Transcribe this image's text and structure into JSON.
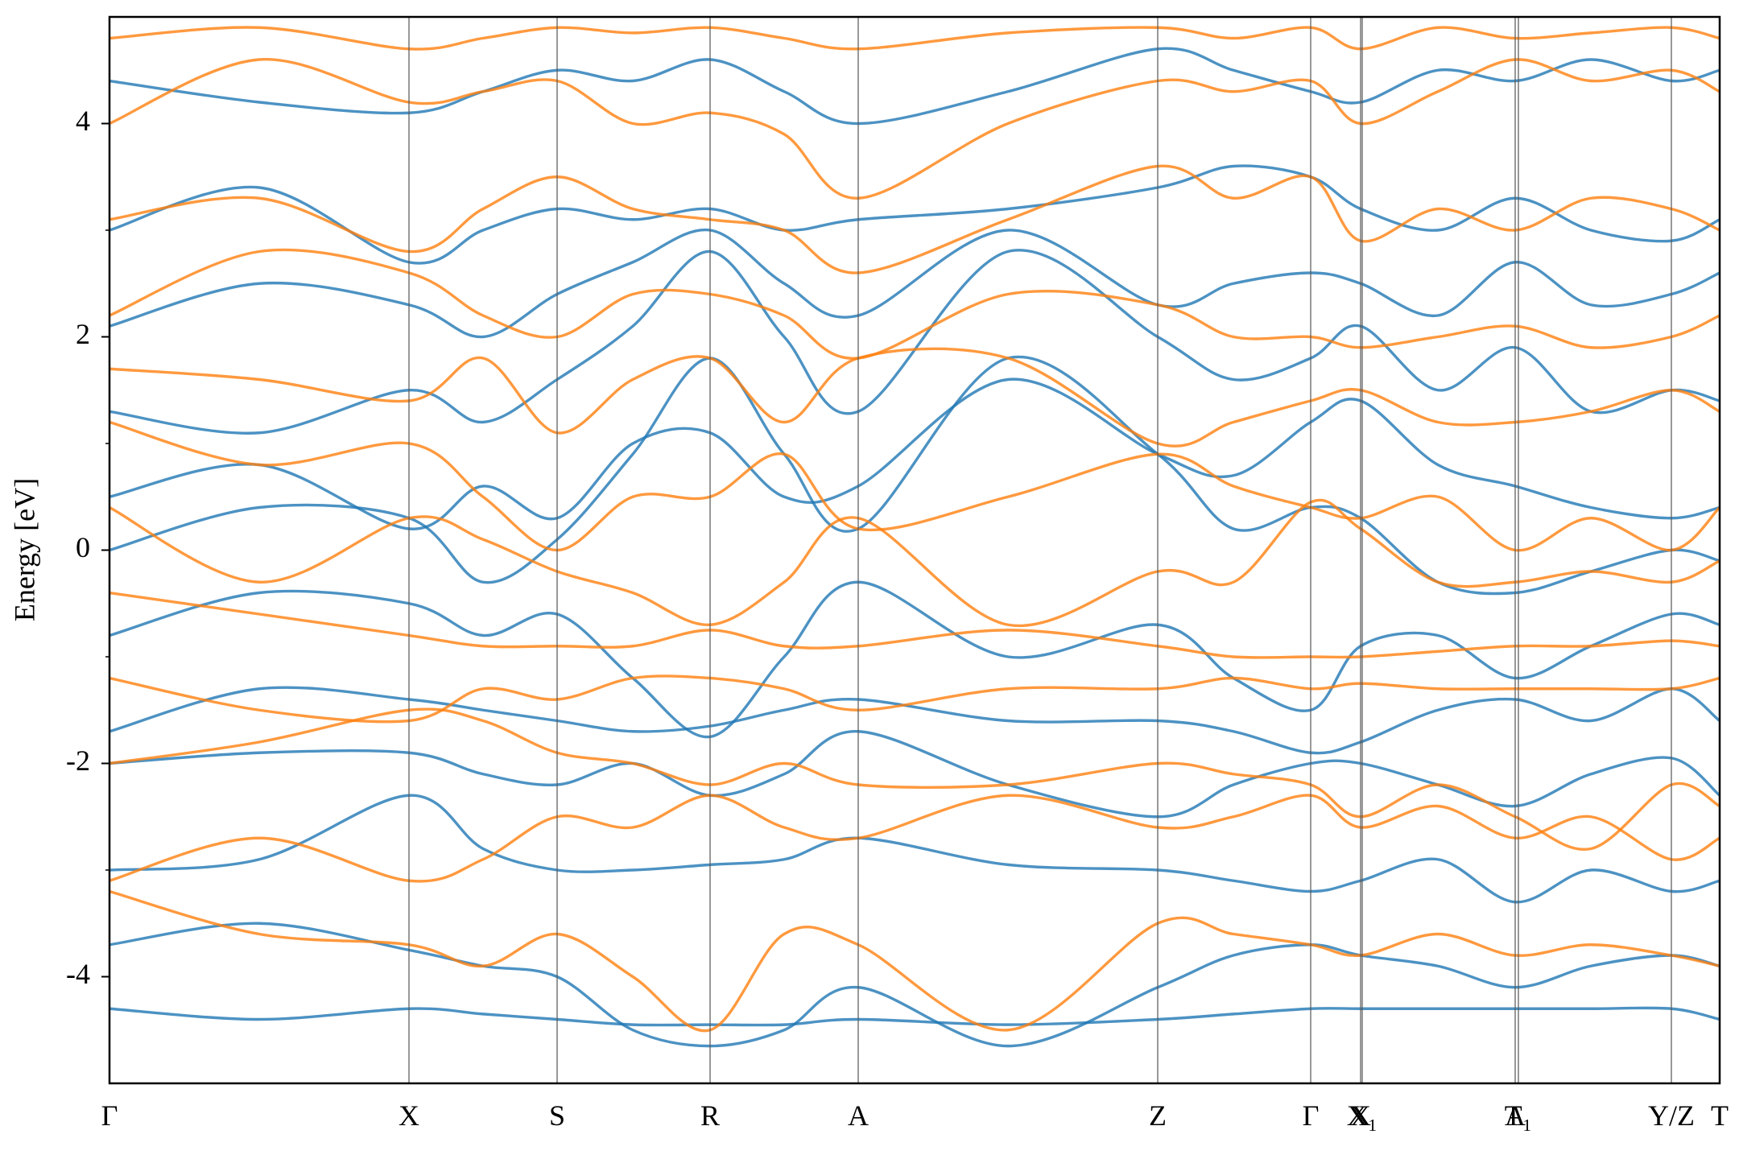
{
  "chart_data": {
    "type": "band_structure",
    "ylabel": "Energy [eV]",
    "xlim": [
      0,
      1
    ],
    "ylim": [
      -5,
      5
    ],
    "yticks": [
      -4,
      -2,
      0,
      2,
      4
    ],
    "yminor_ticks": [
      -3,
      -1,
      1,
      3
    ],
    "xticks": [
      {
        "value": 0,
        "label": "Γ"
      },
      {
        "value": 0.186,
        "label": "X"
      },
      {
        "value": 0.278,
        "label": "S"
      },
      {
        "value": 0.373,
        "label": "R"
      },
      {
        "value": 0.465,
        "label": "A"
      },
      {
        "value": 0.651,
        "label": "Z"
      },
      {
        "value": 0.746,
        "label": "Γ"
      },
      {
        "value": 0.777,
        "label": "X"
      },
      {
        "value": 0.778,
        "label": "X₁"
      },
      {
        "value": 0.873,
        "label": "A"
      },
      {
        "value": 0.875,
        "label": "T₁"
      },
      {
        "value": 0.97,
        "label": "Y/Z"
      },
      {
        "value": 1,
        "label": "T"
      }
    ],
    "x": [
      0,
      0.093,
      0.186,
      0.232,
      0.278,
      0.325,
      0.373,
      0.419,
      0.465,
      0.558,
      0.651,
      0.698,
      0.746,
      0.777,
      0.825,
      0.873,
      0.92,
      0.97,
      1
    ],
    "series": [
      {
        "color": "#1f77b4",
        "bands": [
          [
            -4.3,
            -4.4,
            -4.3,
            -4.35,
            -4.4,
            -4.45,
            -4.45,
            -4.45,
            -4.4,
            -4.45,
            -4.4,
            -4.35,
            -4.3,
            -4.3,
            -4.3,
            -4.3,
            -4.3,
            -4.3,
            -4.4
          ],
          [
            -3.7,
            -3.5,
            -3.75,
            -3.9,
            -4.0,
            -4.5,
            -4.65,
            -4.5,
            -4.1,
            -4.65,
            -4.1,
            -3.8,
            -3.7,
            -3.8,
            -3.9,
            -4.1,
            -3.9,
            -3.8,
            -3.9
          ],
          [
            -3.0,
            -2.9,
            -2.3,
            -2.8,
            -3.0,
            -3.0,
            -2.95,
            -2.9,
            -2.7,
            -2.95,
            -3.0,
            -3.1,
            -3.2,
            -3.1,
            -2.9,
            -3.3,
            -3.0,
            -3.2,
            -3.1
          ],
          [
            -2.0,
            -1.9,
            -1.9,
            -2.1,
            -2.2,
            -2.0,
            -2.3,
            -2.1,
            -1.7,
            -2.2,
            -2.5,
            -2.2,
            -2.0,
            -2.0,
            -2.2,
            -2.4,
            -2.1,
            -1.95,
            -2.3
          ],
          [
            -1.7,
            -1.3,
            -1.4,
            -1.5,
            -1.6,
            -1.7,
            -1.65,
            -1.5,
            -1.4,
            -1.6,
            -1.6,
            -1.7,
            -1.9,
            -1.8,
            -1.5,
            -1.4,
            -1.6,
            -1.3,
            -1.6
          ],
          [
            -0.8,
            -0.4,
            -0.5,
            -0.8,
            -0.6,
            -1.2,
            -1.75,
            -1.0,
            -0.3,
            -1.0,
            -0.7,
            -1.2,
            -1.5,
            -0.9,
            -0.8,
            -1.2,
            -0.9,
            -0.6,
            -0.7
          ],
          [
            0.0,
            0.4,
            0.3,
            -0.3,
            0.1,
            0.9,
            1.8,
            0.9,
            0.2,
            1.8,
            0.9,
            0.2,
            0.4,
            0.3,
            -0.3,
            -0.4,
            -0.2,
            0.0,
            -0.1
          ],
          [
            0.5,
            0.8,
            0.2,
            0.6,
            0.3,
            1.0,
            1.1,
            0.5,
            0.6,
            1.6,
            0.9,
            0.7,
            1.2,
            1.4,
            0.8,
            0.6,
            0.4,
            0.3,
            0.4
          ],
          [
            1.3,
            1.1,
            1.5,
            1.2,
            1.6,
            2.1,
            2.8,
            2.0,
            1.3,
            2.8,
            2.0,
            1.6,
            1.8,
            2.1,
            1.5,
            1.9,
            1.3,
            1.5,
            1.4
          ],
          [
            2.1,
            2.5,
            2.3,
            2.0,
            2.4,
            2.7,
            3.0,
            2.5,
            2.2,
            3.0,
            2.3,
            2.5,
            2.6,
            2.5,
            2.2,
            2.7,
            2.3,
            2.4,
            2.6
          ],
          [
            3.0,
            3.4,
            2.7,
            3.0,
            3.2,
            3.1,
            3.2,
            3.0,
            3.1,
            3.2,
            3.4,
            3.6,
            3.5,
            3.2,
            3.0,
            3.3,
            3.0,
            2.9,
            3.1
          ],
          [
            4.4,
            4.2,
            4.1,
            4.3,
            4.5,
            4.4,
            4.6,
            4.3,
            4.0,
            4.3,
            4.7,
            4.5,
            4.3,
            4.2,
            4.5,
            4.4,
            4.6,
            4.4,
            4.5
          ]
        ]
      },
      {
        "color": "#ff7f0e",
        "bands": [
          [
            -3.2,
            -3.6,
            -3.7,
            -3.9,
            -3.6,
            -4.0,
            -4.5,
            -3.6,
            -3.7,
            -4.5,
            -3.5,
            -3.6,
            -3.7,
            -3.8,
            -3.6,
            -3.8,
            -3.7,
            -3.8,
            -3.9
          ],
          [
            -3.1,
            -2.7,
            -3.1,
            -2.9,
            -2.5,
            -2.6,
            -2.3,
            -2.6,
            -2.7,
            -2.3,
            -2.6,
            -2.5,
            -2.3,
            -2.6,
            -2.4,
            -2.7,
            -2.5,
            -2.9,
            -2.7
          ],
          [
            -2.0,
            -1.8,
            -1.5,
            -1.6,
            -1.9,
            -2.0,
            -2.2,
            -2.0,
            -2.2,
            -2.2,
            -2.0,
            -2.1,
            -2.2,
            -2.5,
            -2.2,
            -2.5,
            -2.8,
            -2.2,
            -2.4
          ],
          [
            -1.2,
            -1.5,
            -1.6,
            -1.3,
            -1.4,
            -1.2,
            -1.2,
            -1.3,
            -1.5,
            -1.3,
            -1.3,
            -1.2,
            -1.3,
            -1.25,
            -1.3,
            -1.3,
            -1.3,
            -1.3,
            -1.2
          ],
          [
            -0.4,
            -0.6,
            -0.8,
            -0.9,
            -0.9,
            -0.9,
            -0.75,
            -0.9,
            -0.9,
            -0.75,
            -0.9,
            -1.0,
            -1.0,
            -1.0,
            -0.95,
            -0.9,
            -0.9,
            -0.85,
            -0.9
          ],
          [
            0.4,
            -0.3,
            0.3,
            0.1,
            -0.2,
            -0.4,
            -0.7,
            -0.3,
            0.3,
            -0.7,
            -0.2,
            -0.3,
            0.45,
            0.2,
            -0.3,
            -0.3,
            -0.2,
            -0.3,
            -0.1
          ],
          [
            1.2,
            0.8,
            1.0,
            0.5,
            0.0,
            0.5,
            0.5,
            0.9,
            0.2,
            0.5,
            0.9,
            0.6,
            0.4,
            0.3,
            0.5,
            0.0,
            0.3,
            0.0,
            0.4
          ],
          [
            1.7,
            1.6,
            1.4,
            1.8,
            1.1,
            1.6,
            1.8,
            1.2,
            1.8,
            1.8,
            1.0,
            1.2,
            1.4,
            1.5,
            1.2,
            1.2,
            1.3,
            1.5,
            1.3
          ],
          [
            2.2,
            2.8,
            2.6,
            2.2,
            2.0,
            2.4,
            2.4,
            2.2,
            1.8,
            2.4,
            2.3,
            2.0,
            2.0,
            1.9,
            2.0,
            2.1,
            1.9,
            2.0,
            2.2
          ],
          [
            3.1,
            3.3,
            2.8,
            3.2,
            3.5,
            3.2,
            3.1,
            3.0,
            2.6,
            3.1,
            3.6,
            3.3,
            3.5,
            2.9,
            3.2,
            3.0,
            3.3,
            3.2,
            3.0
          ],
          [
            4.0,
            4.6,
            4.2,
            4.3,
            4.4,
            4.0,
            4.1,
            3.9,
            3.3,
            4.0,
            4.4,
            4.3,
            4.4,
            4.0,
            4.3,
            4.6,
            4.4,
            4.5,
            4.3
          ],
          [
            4.8,
            4.9,
            4.7,
            4.8,
            4.9,
            4.85,
            4.9,
            4.8,
            4.7,
            4.85,
            4.9,
            4.8,
            4.9,
            4.7,
            4.9,
            4.8,
            4.85,
            4.9,
            4.8
          ]
        ]
      }
    ]
  }
}
